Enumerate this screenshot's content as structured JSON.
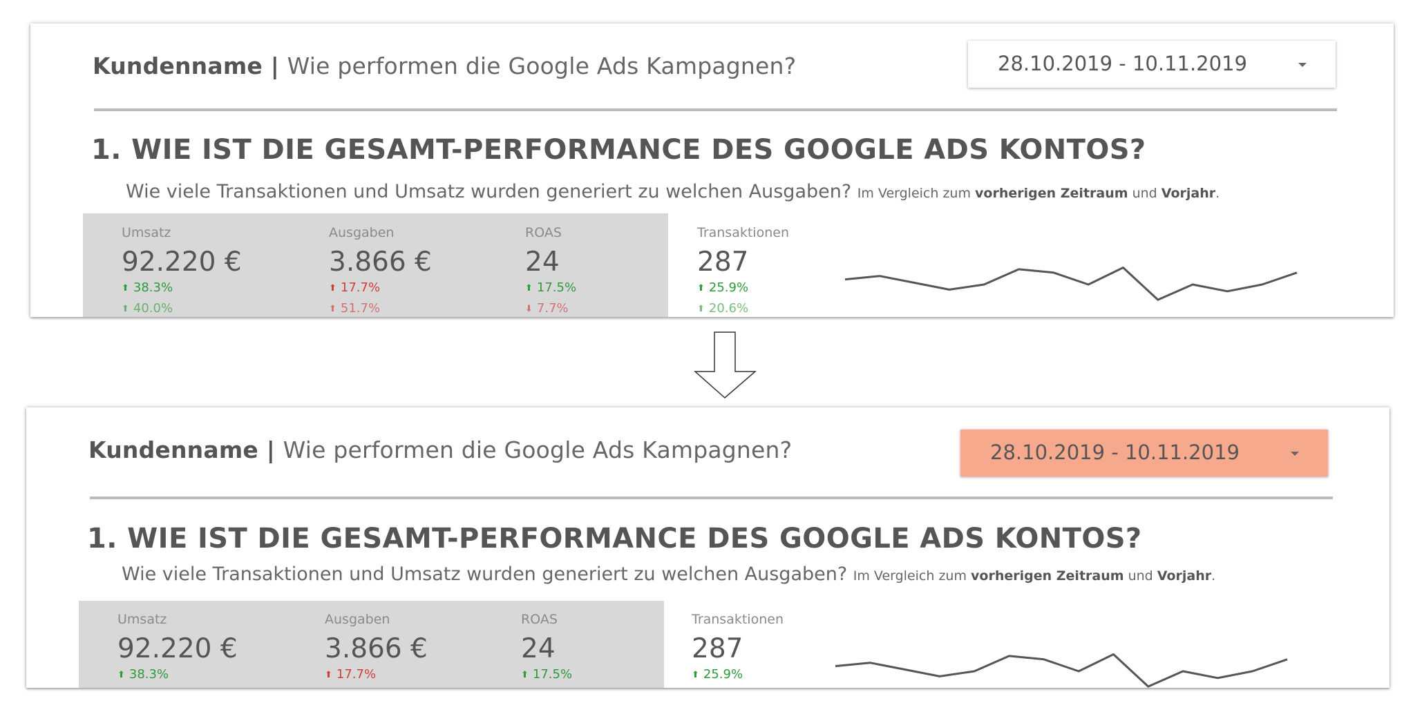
{
  "header": {
    "client": "Kundenname",
    "separator": " | ",
    "question": "Wie performen die Google Ads Kampagnen?"
  },
  "date_range": {
    "label": "28.10.2019 - 10.11.2019",
    "icon": "dropdown-caret-icon"
  },
  "date_range_highlight_color": "#f7a98e",
  "section": {
    "title": "1. WIE IST DIE GESAMT-PERFORMANCE DES GOOGLE ADS KONTOS?",
    "question": "Wie viele Transaktionen und Umsatz wurden generiert zu welchen Ausgaben?",
    "compare_prefix": "Im Vergleich zum",
    "compare_prev": "vorherigen Zeitraum",
    "compare_and": "und",
    "compare_year": "Vorjahr",
    "compare_end": "."
  },
  "kpis": [
    {
      "label": "Umsatz",
      "value": "92.220 €",
      "delta": "38.3%",
      "delta2": "40.0%"
    },
    {
      "label": "Ausgaben",
      "value": "3.866 €",
      "delta": "17.7%",
      "delta2": "51.7%"
    },
    {
      "label": "ROAS",
      "value": "24",
      "delta": "17.5%",
      "delta2": "7.7%"
    },
    {
      "label": "Transaktionen",
      "value": "287",
      "delta": "25.9%",
      "delta2": "20.6%"
    }
  ],
  "colors": {
    "positive": "#2e9a3a",
    "negative": "#d23c3c",
    "kpi_background": "#d8d8d8"
  },
  "chart_data": {
    "type": "line",
    "title": "",
    "series": [
      {
        "values": [
          0.7,
          0.8,
          0.6,
          0.4,
          0.55,
          1.0,
          0.9,
          0.55,
          1.05,
          0.1,
          0.55,
          0.35,
          0.55,
          0.9
        ]
      }
    ],
    "ylim": [
      0,
      1.1
    ],
    "grid": false
  }
}
